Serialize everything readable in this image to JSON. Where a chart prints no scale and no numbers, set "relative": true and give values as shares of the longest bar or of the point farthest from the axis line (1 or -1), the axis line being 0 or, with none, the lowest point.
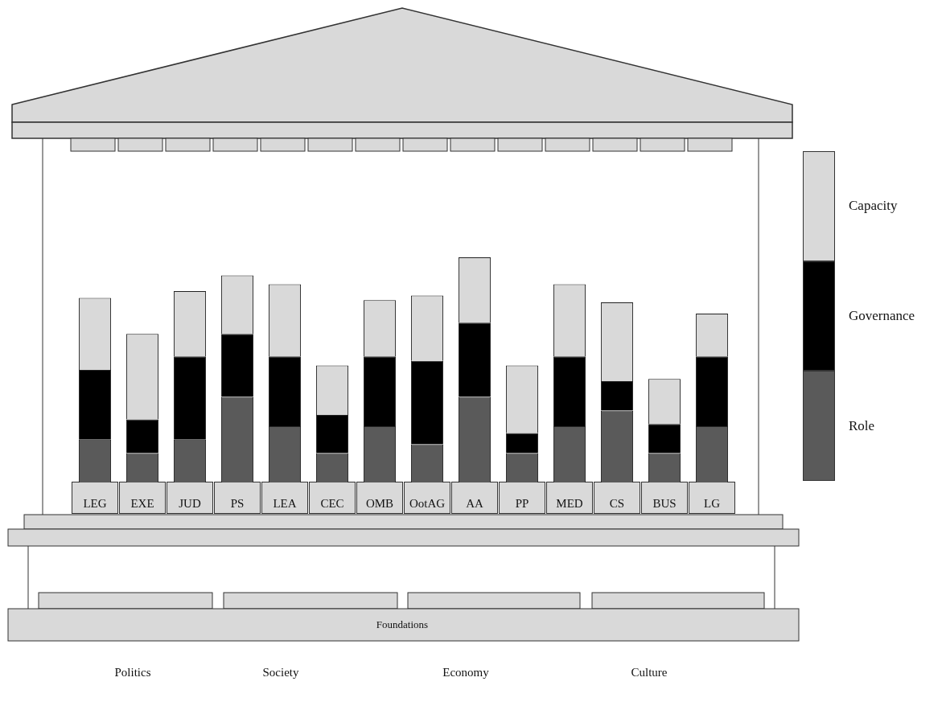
{
  "chart_data": {
    "type": "bar",
    "stacked": true,
    "relative": true,
    "legend": "right",
    "grid": false,
    "categories": [
      "LEG",
      "EXE",
      "JUD",
      "PS",
      "LEA",
      "CEC",
      "OMB",
      "OotAG",
      "AA",
      "PP",
      "MED",
      "CS",
      "BUS",
      "LG"
    ],
    "series": [
      {
        "name": "Role",
        "color": "#5a5a5a",
        "values": [
          0.19,
          0.13,
          0.19,
          0.38,
          0.25,
          0.13,
          0.25,
          0.17,
          0.38,
          0.13,
          0.25,
          0.32,
          0.13,
          0.25
        ]
      },
      {
        "name": "Governance",
        "color": "#000000",
        "values": [
          0.31,
          0.15,
          0.37,
          0.28,
          0.31,
          0.17,
          0.31,
          0.37,
          0.33,
          0.09,
          0.31,
          0.13,
          0.13,
          0.31
        ]
      },
      {
        "name": "Capacity",
        "color": "#d9d9d9",
        "values": [
          0.32,
          0.38,
          0.29,
          0.26,
          0.32,
          0.22,
          0.25,
          0.29,
          0.29,
          0.3,
          0.32,
          0.35,
          0.2,
          0.19
        ]
      }
    ],
    "annotations": [
      "Foundations",
      "Politics",
      "Society",
      "Economy",
      "Culture"
    ]
  }
}
